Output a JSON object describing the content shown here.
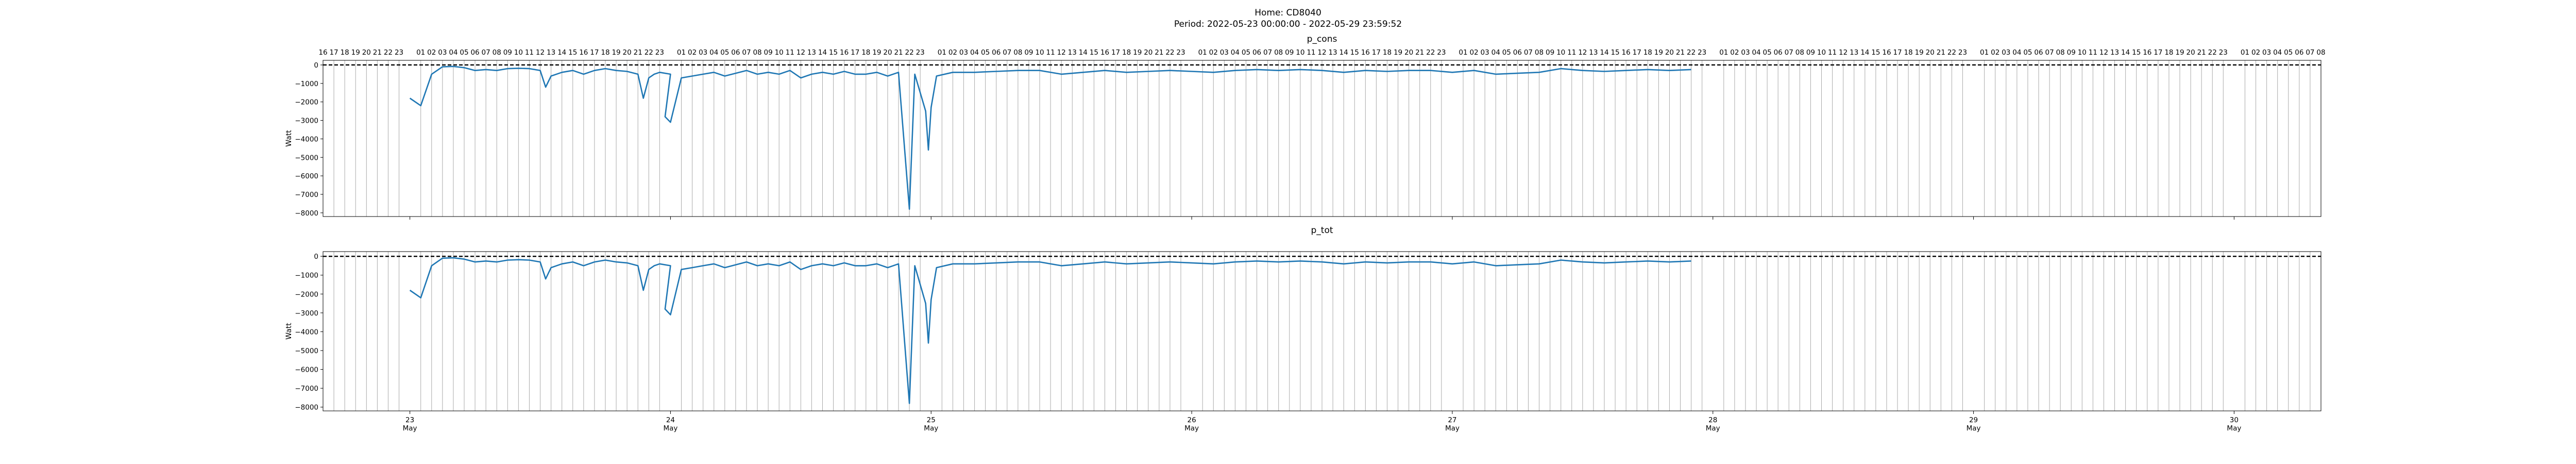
{
  "figure": {
    "title_line1": "Home: CD8040",
    "title_line2": "Period: 2022-05-23 00:00:00 - 2022-05-29 23:59:52"
  },
  "chart_data": [
    {
      "type": "line",
      "title": "p_cons",
      "ylabel": "Watt",
      "xlabel": "",
      "xlim": [
        "2022-05-22 16:00",
        "2022-05-30 08:00"
      ],
      "ylim": [
        -8200,
        250
      ],
      "yticks": [
        0,
        -1000,
        -2000,
        -3000,
        -4000,
        -5000,
        -6000,
        -7000,
        -8000
      ],
      "x_major_ticks": [
        {
          "day": "23",
          "month": "May"
        },
        {
          "day": "24",
          "month": "May"
        },
        {
          "day": "25",
          "month": "May"
        },
        {
          "day": "26",
          "month": "May"
        },
        {
          "day": "27",
          "month": "May"
        },
        {
          "day": "28",
          "month": "May"
        },
        {
          "day": "29",
          "month": "May"
        },
        {
          "day": "30",
          "month": "May"
        }
      ],
      "hour_ticks_top": true,
      "hour_grid": true,
      "reference_line": {
        "y": 0,
        "style": "dashed"
      },
      "grid": false,
      "legend": "none",
      "series": [
        {
          "color": "#1f77b4",
          "points": [
            [
              "2022-05-23 00:00",
              -1800
            ],
            [
              "2022-05-23 01:00",
              -2200
            ],
            [
              "2022-05-23 02:00",
              -500
            ],
            [
              "2022-05-23 03:00",
              -100
            ],
            [
              "2022-05-23 04:00",
              -80
            ],
            [
              "2022-05-23 05:00",
              -150
            ],
            [
              "2022-05-23 06:00",
              -300
            ],
            [
              "2022-05-23 07:00",
              -250
            ],
            [
              "2022-05-23 08:00",
              -300
            ],
            [
              "2022-05-23 09:00",
              -200
            ],
            [
              "2022-05-23 10:00",
              -180
            ],
            [
              "2022-05-23 11:00",
              -200
            ],
            [
              "2022-05-23 12:00",
              -300
            ],
            [
              "2022-05-23 12:30",
              -1200
            ],
            [
              "2022-05-23 13:00",
              -600
            ],
            [
              "2022-05-23 14:00",
              -400
            ],
            [
              "2022-05-23 15:00",
              -300
            ],
            [
              "2022-05-23 16:00",
              -500
            ],
            [
              "2022-05-23 17:00",
              -300
            ],
            [
              "2022-05-23 18:00",
              -200
            ],
            [
              "2022-05-23 19:00",
              -300
            ],
            [
              "2022-05-23 20:00",
              -350
            ],
            [
              "2022-05-23 21:00",
              -500
            ],
            [
              "2022-05-23 21:30",
              -1800
            ],
            [
              "2022-05-23 22:00",
              -700
            ],
            [
              "2022-05-23 22:30",
              -500
            ],
            [
              "2022-05-23 23:00",
              -400
            ],
            [
              "2022-05-24 00:00",
              -500
            ],
            [
              "2022-05-23 23:30",
              -2800
            ],
            [
              "2022-05-24 00:00",
              -3100
            ],
            [
              "2022-05-24 01:00",
              -700
            ],
            [
              "2022-05-24 02:00",
              -600
            ],
            [
              "2022-05-24 03:00",
              -500
            ],
            [
              "2022-05-24 04:00",
              -400
            ],
            [
              "2022-05-24 05:00",
              -600
            ],
            [
              "2022-05-24 06:00",
              -450
            ],
            [
              "2022-05-24 07:00",
              -300
            ],
            [
              "2022-05-24 08:00",
              -500
            ],
            [
              "2022-05-24 09:00",
              -400
            ],
            [
              "2022-05-24 10:00",
              -500
            ],
            [
              "2022-05-24 11:00",
              -300
            ],
            [
              "2022-05-24 12:00",
              -700
            ],
            [
              "2022-05-24 13:00",
              -500
            ],
            [
              "2022-05-24 14:00",
              -400
            ],
            [
              "2022-05-24 15:00",
              -500
            ],
            [
              "2022-05-24 16:00",
              -350
            ],
            [
              "2022-05-24 17:00",
              -500
            ],
            [
              "2022-05-24 18:00",
              -500
            ],
            [
              "2022-05-24 19:00",
              -400
            ],
            [
              "2022-05-24 20:00",
              -600
            ],
            [
              "2022-05-24 21:00",
              -400
            ],
            [
              "2022-05-24 22:00",
              -7800
            ],
            [
              "2022-05-24 22:30",
              -500
            ],
            [
              "2022-05-24 23:30",
              -2500
            ],
            [
              "2022-05-24 23:45",
              -4600
            ],
            [
              "2022-05-25 00:00",
              -2300
            ],
            [
              "2022-05-25 00:30",
              -600
            ],
            [
              "2022-05-25 02:00",
              -400
            ],
            [
              "2022-05-25 04:00",
              -400
            ],
            [
              "2022-05-25 06:00",
              -350
            ],
            [
              "2022-05-25 08:00",
              -300
            ],
            [
              "2022-05-25 10:00",
              -300
            ],
            [
              "2022-05-25 12:00",
              -500
            ],
            [
              "2022-05-25 14:00",
              -400
            ],
            [
              "2022-05-25 16:00",
              -300
            ],
            [
              "2022-05-25 18:00",
              -400
            ],
            [
              "2022-05-25 20:00",
              -350
            ],
            [
              "2022-05-25 22:00",
              -300
            ],
            [
              "2022-05-26 00:00",
              -350
            ],
            [
              "2022-05-26 02:00",
              -400
            ],
            [
              "2022-05-26 04:00",
              -300
            ],
            [
              "2022-05-26 06:00",
              -250
            ],
            [
              "2022-05-26 08:00",
              -300
            ],
            [
              "2022-05-26 10:00",
              -250
            ],
            [
              "2022-05-26 12:00",
              -300
            ],
            [
              "2022-05-26 14:00",
              -400
            ],
            [
              "2022-05-26 16:00",
              -300
            ],
            [
              "2022-05-26 18:00",
              -350
            ],
            [
              "2022-05-26 20:00",
              -300
            ],
            [
              "2022-05-26 22:00",
              -300
            ],
            [
              "2022-05-27 00:00",
              -400
            ],
            [
              "2022-05-27 02:00",
              -300
            ],
            [
              "2022-05-27 04:00",
              -500
            ],
            [
              "2022-05-27 06:00",
              -450
            ],
            [
              "2022-05-27 08:00",
              -400
            ],
            [
              "2022-05-27 10:00",
              -200
            ],
            [
              "2022-05-27 12:00",
              -300
            ],
            [
              "2022-05-27 14:00",
              -350
            ],
            [
              "2022-05-27 16:00",
              -300
            ],
            [
              "2022-05-27 18:00",
              -250
            ],
            [
              "2022-05-27 20:00",
              -300
            ],
            [
              "2022-05-27 22:00",
              -250
            ]
          ]
        }
      ]
    },
    {
      "type": "line",
      "title": "p_tot",
      "ylabel": "Watt",
      "xlabel": "",
      "xlim": [
        "2022-05-22 16:00",
        "2022-05-30 08:00"
      ],
      "ylim": [
        -8200,
        250
      ],
      "yticks": [
        0,
        -1000,
        -2000,
        -3000,
        -4000,
        -5000,
        -6000,
        -7000,
        -8000
      ],
      "x_major_ticks": [
        {
          "day": "23",
          "month": "May"
        },
        {
          "day": "24",
          "month": "May"
        },
        {
          "day": "25",
          "month": "May"
        },
        {
          "day": "26",
          "month": "May"
        },
        {
          "day": "27",
          "month": "May"
        },
        {
          "day": "28",
          "month": "May"
        },
        {
          "day": "29",
          "month": "May"
        },
        {
          "day": "30",
          "month": "May"
        }
      ],
      "hour_ticks_top": false,
      "hour_grid": true,
      "reference_line": {
        "y": 0,
        "style": "dashed"
      },
      "grid": false,
      "legend": "none",
      "series": [
        {
          "color": "#1f77b4",
          "points": "same as p_cons"
        }
      ]
    }
  ]
}
